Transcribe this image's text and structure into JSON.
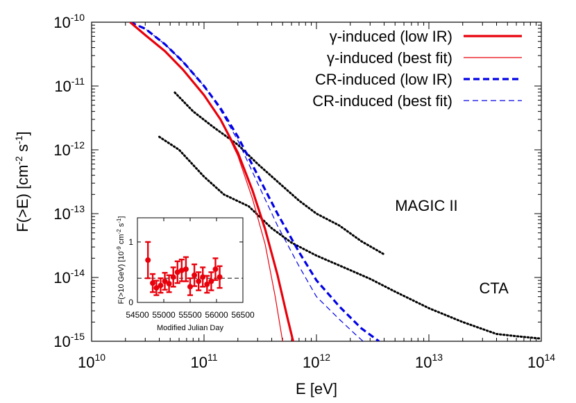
{
  "chart_data": {
    "type": "line",
    "xlabel": "E [eV]",
    "ylabel": "F(>E) [cm-2 s-1]",
    "xscale": "log",
    "yscale": "log",
    "xlim": [
      10000000000.0,
      100000000000000.0
    ],
    "ylim": [
      1e-15,
      1e-10
    ],
    "x_ticks": [
      {
        "base": "10",
        "exp": "10"
      },
      {
        "base": "10",
        "exp": "11"
      },
      {
        "base": "10",
        "exp": "12"
      },
      {
        "base": "10",
        "exp": "13"
      },
      {
        "base": "10",
        "exp": "14"
      }
    ],
    "y_ticks": [
      {
        "base": "10",
        "exp": "-10"
      },
      {
        "base": "10",
        "exp": "-11"
      },
      {
        "base": "10",
        "exp": "-12"
      },
      {
        "base": "10",
        "exp": "-13"
      },
      {
        "base": "10",
        "exp": "-14"
      },
      {
        "base": "10",
        "exp": "-15"
      }
    ],
    "grid": false,
    "legend_position": "top-right",
    "series": [
      {
        "name": "γ-induced (low IR)",
        "color": "#e8000b",
        "style": "solid-thick",
        "points": [
          [
            22000000000.0,
            1e-10
          ],
          [
            30000000000.0,
            6.3e-11
          ],
          [
            45000000000.0,
            3.5e-11
          ],
          [
            65000000000.0,
            1.8e-11
          ],
          [
            100000000000.0,
            7.2e-12
          ],
          [
            140000000000.0,
            3e-12
          ],
          [
            200000000000.0,
            9e-13
          ],
          [
            270000000000.0,
            2.3e-13
          ],
          [
            350000000000.0,
            5.7e-14
          ],
          [
            450000000000.0,
            1.1e-14
          ],
          [
            550000000000.0,
            2.4e-15
          ],
          [
            620000000000.0,
            1e-15
          ]
        ]
      },
      {
        "name": "γ-induced (best fit)",
        "color": "#e8000b",
        "style": "solid-thin",
        "points": [
          [
            22000000000.0,
            1e-10
          ],
          [
            30000000000.0,
            6.3e-11
          ],
          [
            45000000000.0,
            3.5e-11
          ],
          [
            65000000000.0,
            1.8e-11
          ],
          [
            100000000000.0,
            7.2e-12
          ],
          [
            140000000000.0,
            3e-12
          ],
          [
            200000000000.0,
            8e-13
          ],
          [
            270000000000.0,
            1.7e-13
          ],
          [
            350000000000.0,
            3.3e-14
          ],
          [
            430000000000.0,
            5e-15
          ],
          [
            500000000000.0,
            1e-15
          ]
        ]
      },
      {
        "name": "CR-induced (low IR)",
        "color": "#0000e6",
        "style": "dashed-thick",
        "points": [
          [
            22000000000.0,
            1e-10
          ],
          [
            30000000000.0,
            7.9e-11
          ],
          [
            45000000000.0,
            4.5e-11
          ],
          [
            65000000000.0,
            2.4e-11
          ],
          [
            100000000000.0,
            1e-11
          ],
          [
            140000000000.0,
            4.5e-12
          ],
          [
            200000000000.0,
            1.6e-12
          ],
          [
            300000000000.0,
            4e-13
          ],
          [
            450000000000.0,
            1e-13
          ],
          [
            700000000000.0,
            2.5e-14
          ],
          [
            1000000000000.0,
            9e-15
          ],
          [
            1600000000000.0,
            3.5e-15
          ],
          [
            2500000000000.0,
            1.6e-15
          ],
          [
            3600000000000.0,
            1e-15
          ]
        ]
      },
      {
        "name": "CR-induced (best fit)",
        "color": "#0000e6",
        "style": "dashed-thin",
        "points": [
          [
            22000000000.0,
            1e-10
          ],
          [
            30000000000.0,
            7.9e-11
          ],
          [
            45000000000.0,
            4.5e-11
          ],
          [
            65000000000.0,
            2.4e-11
          ],
          [
            100000000000.0,
            1e-11
          ],
          [
            140000000000.0,
            4.2e-12
          ],
          [
            200000000000.0,
            1.4e-12
          ],
          [
            300000000000.0,
            3e-13
          ],
          [
            450000000000.0,
            6.5e-14
          ],
          [
            700000000000.0,
            1.5e-14
          ],
          [
            1000000000000.0,
            5e-15
          ],
          [
            1600000000000.0,
            2.2e-15
          ],
          [
            2200000000000.0,
            1.3e-15
          ],
          [
            2600000000000.0,
            1e-15
          ]
        ]
      },
      {
        "name": "MAGIC II",
        "color": "#000000",
        "style": "dotted",
        "points": [
          [
            55000000000.0,
            7.9e-12
          ],
          [
            80000000000.0,
            4e-12
          ],
          [
            120000000000.0,
            2.3e-12
          ],
          [
            200000000000.0,
            1.2e-12
          ],
          [
            300000000000.0,
            6e-13
          ],
          [
            500000000000.0,
            2.7e-13
          ],
          [
            700000000000.0,
            1.6e-13
          ],
          [
            1000000000000.0,
            1e-13
          ],
          [
            1600000000000.0,
            6.5e-14
          ],
          [
            2500000000000.0,
            3.7e-14
          ],
          [
            4000000000000.0,
            2.3e-14
          ]
        ]
      },
      {
        "name": "CTA",
        "color": "#000000",
        "style": "dotted",
        "points": [
          [
            40000000000.0,
            1.6e-12
          ],
          [
            60000000000.0,
            1e-12
          ],
          [
            100000000000.0,
            3.8e-13
          ],
          [
            150000000000.0,
            2e-13
          ],
          [
            250000000000.0,
            1.3e-13
          ],
          [
            400000000000.0,
            5.9e-14
          ],
          [
            600000000000.0,
            3.5e-14
          ],
          [
            1000000000000.0,
            2.2e-14
          ],
          [
            2000000000000.0,
            1.3e-14
          ],
          [
            3000000000000.0,
            9.5e-15
          ],
          [
            5000000000000.0,
            6e-15
          ],
          [
            10000000000000.0,
            3.3e-15
          ],
          [
            20000000000000.0,
            2e-15
          ],
          [
            40000000000000.0,
            1.3e-15
          ],
          [
            60000000000000.0,
            1.2e-15
          ],
          [
            100000000000000.0,
            1.1e-15
          ]
        ]
      }
    ],
    "annotations": [
      {
        "text": "MAGIC II",
        "x": 5000000000000.0,
        "y": 1.1e-13
      },
      {
        "text": "CTA",
        "x": 28000000000000.0,
        "y": 5.6e-15
      }
    ],
    "inset": {
      "type": "scatter",
      "xlabel": "Modified Julian Day",
      "ylabel": "F(>10 GeV) [10-9 cm-2 s-1]",
      "xlim": [
        54500,
        56500
      ],
      "ylim": [
        0,
        1.4
      ],
      "x_ticks": [
        "54500",
        "55000",
        "55500",
        "56000",
        "56500"
      ],
      "y_ticks": [
        "0",
        "1"
      ],
      "reference_y": 0.4,
      "color": "#e8000b",
      "points": [
        {
          "x": 54700,
          "y": 0.7,
          "err": 0.3
        },
        {
          "x": 54790,
          "y": 0.32,
          "err": 0.15
        },
        {
          "x": 54860,
          "y": 0.24,
          "err": 0.12
        },
        {
          "x": 54940,
          "y": 0.28,
          "err": 0.12
        },
        {
          "x": 55020,
          "y": 0.35,
          "err": 0.14
        },
        {
          "x": 55100,
          "y": 0.31,
          "err": 0.14
        },
        {
          "x": 55180,
          "y": 0.42,
          "err": 0.16
        },
        {
          "x": 55260,
          "y": 0.5,
          "err": 0.18
        },
        {
          "x": 55340,
          "y": 0.53,
          "err": 0.18
        },
        {
          "x": 55420,
          "y": 0.55,
          "err": 0.2
        },
        {
          "x": 55500,
          "y": 0.26,
          "err": 0.14
        },
        {
          "x": 55580,
          "y": 0.45,
          "err": 0.18
        },
        {
          "x": 55660,
          "y": 0.35,
          "err": 0.15
        },
        {
          "x": 55740,
          "y": 0.42,
          "err": 0.16
        },
        {
          "x": 55820,
          "y": 0.3,
          "err": 0.14
        },
        {
          "x": 55900,
          "y": 0.35,
          "err": 0.15
        },
        {
          "x": 55980,
          "y": 0.55,
          "err": 0.18
        },
        {
          "x": 56060,
          "y": 0.42,
          "err": 0.18
        }
      ]
    }
  }
}
